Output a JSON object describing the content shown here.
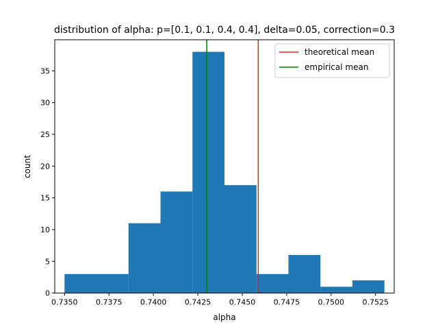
{
  "chart_data": {
    "type": "bar",
    "subtype": "histogram",
    "title": "distribution of alpha: p=[0.1, 0.1, 0.4, 0.4], delta=0.05, correction=0.3",
    "xlabel": "alpha",
    "ylabel": "count",
    "xlim": [
      0.73445,
      0.75355
    ],
    "ylim": [
      0,
      39.9
    ],
    "bin_edges": [
      0.735,
      0.7368,
      0.7386,
      0.7404,
      0.7422,
      0.744,
      0.7458,
      0.7476,
      0.7494,
      0.7512,
      0.753
    ],
    "values": [
      3,
      3,
      11,
      16,
      38,
      17,
      3,
      6,
      1,
      2
    ],
    "bar_color": "#1f77b4",
    "x_ticks": [
      0.735,
      0.7375,
      0.74,
      0.7425,
      0.745,
      0.7475,
      0.75,
      0.7525
    ],
    "x_tick_labels": [
      "0.7350",
      "0.7375",
      "0.7400",
      "0.7425",
      "0.7450",
      "0.7475",
      "0.7500",
      "0.7525"
    ],
    "y_ticks": [
      0,
      5,
      10,
      15,
      20,
      25,
      30,
      35
    ],
    "y_tick_labels": [
      "0",
      "5",
      "10",
      "15",
      "20",
      "25",
      "30",
      "35"
    ],
    "vertical_lines": [
      {
        "name": "theoretical mean",
        "x": 0.7459,
        "color": "#d62728"
      },
      {
        "name": "empirical mean",
        "x": 0.743,
        "color": "#008000"
      }
    ],
    "legend": {
      "placement": "top-right",
      "entries": [
        {
          "label": "theoretical mean",
          "color": "#d62728"
        },
        {
          "label": "empirical mean",
          "color": "#008000"
        }
      ]
    },
    "grid": false
  }
}
